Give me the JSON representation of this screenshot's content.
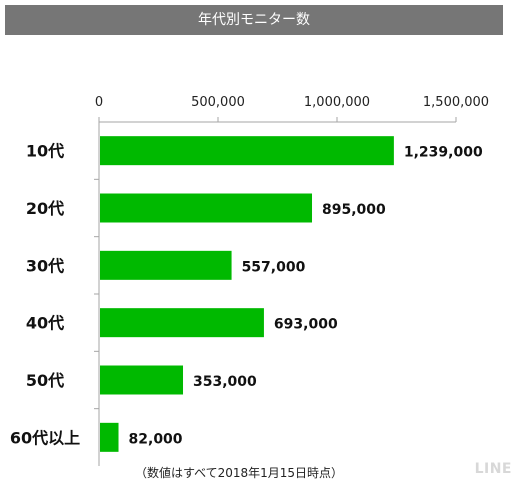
{
  "title": "年代別モニター数",
  "footnote": "（数値はすべて2018年1月15日時点）",
  "brand": "LINE",
  "colors": {
    "bar": "#00b900",
    "title_bg": "#767676",
    "axis": "#a6a6a6"
  },
  "chart_data": {
    "type": "bar",
    "orientation": "horizontal",
    "categories": [
      "10代",
      "20代",
      "30代",
      "40代",
      "50代",
      "60代以上"
    ],
    "values": [
      1239000,
      895000,
      557000,
      693000,
      353000,
      82000
    ],
    "value_labels": [
      "1,239,000",
      "895,000",
      "557,000",
      "693,000",
      "353,000",
      "82,000"
    ],
    "x_ticks": [
      0,
      500000,
      1000000,
      1500000
    ],
    "x_tick_labels": [
      "0",
      "500,000",
      "1,000,000",
      "1,500,000"
    ],
    "xlim": [
      0,
      1500000
    ],
    "x_axis_position": "top",
    "grid": false,
    "legend": "none"
  }
}
